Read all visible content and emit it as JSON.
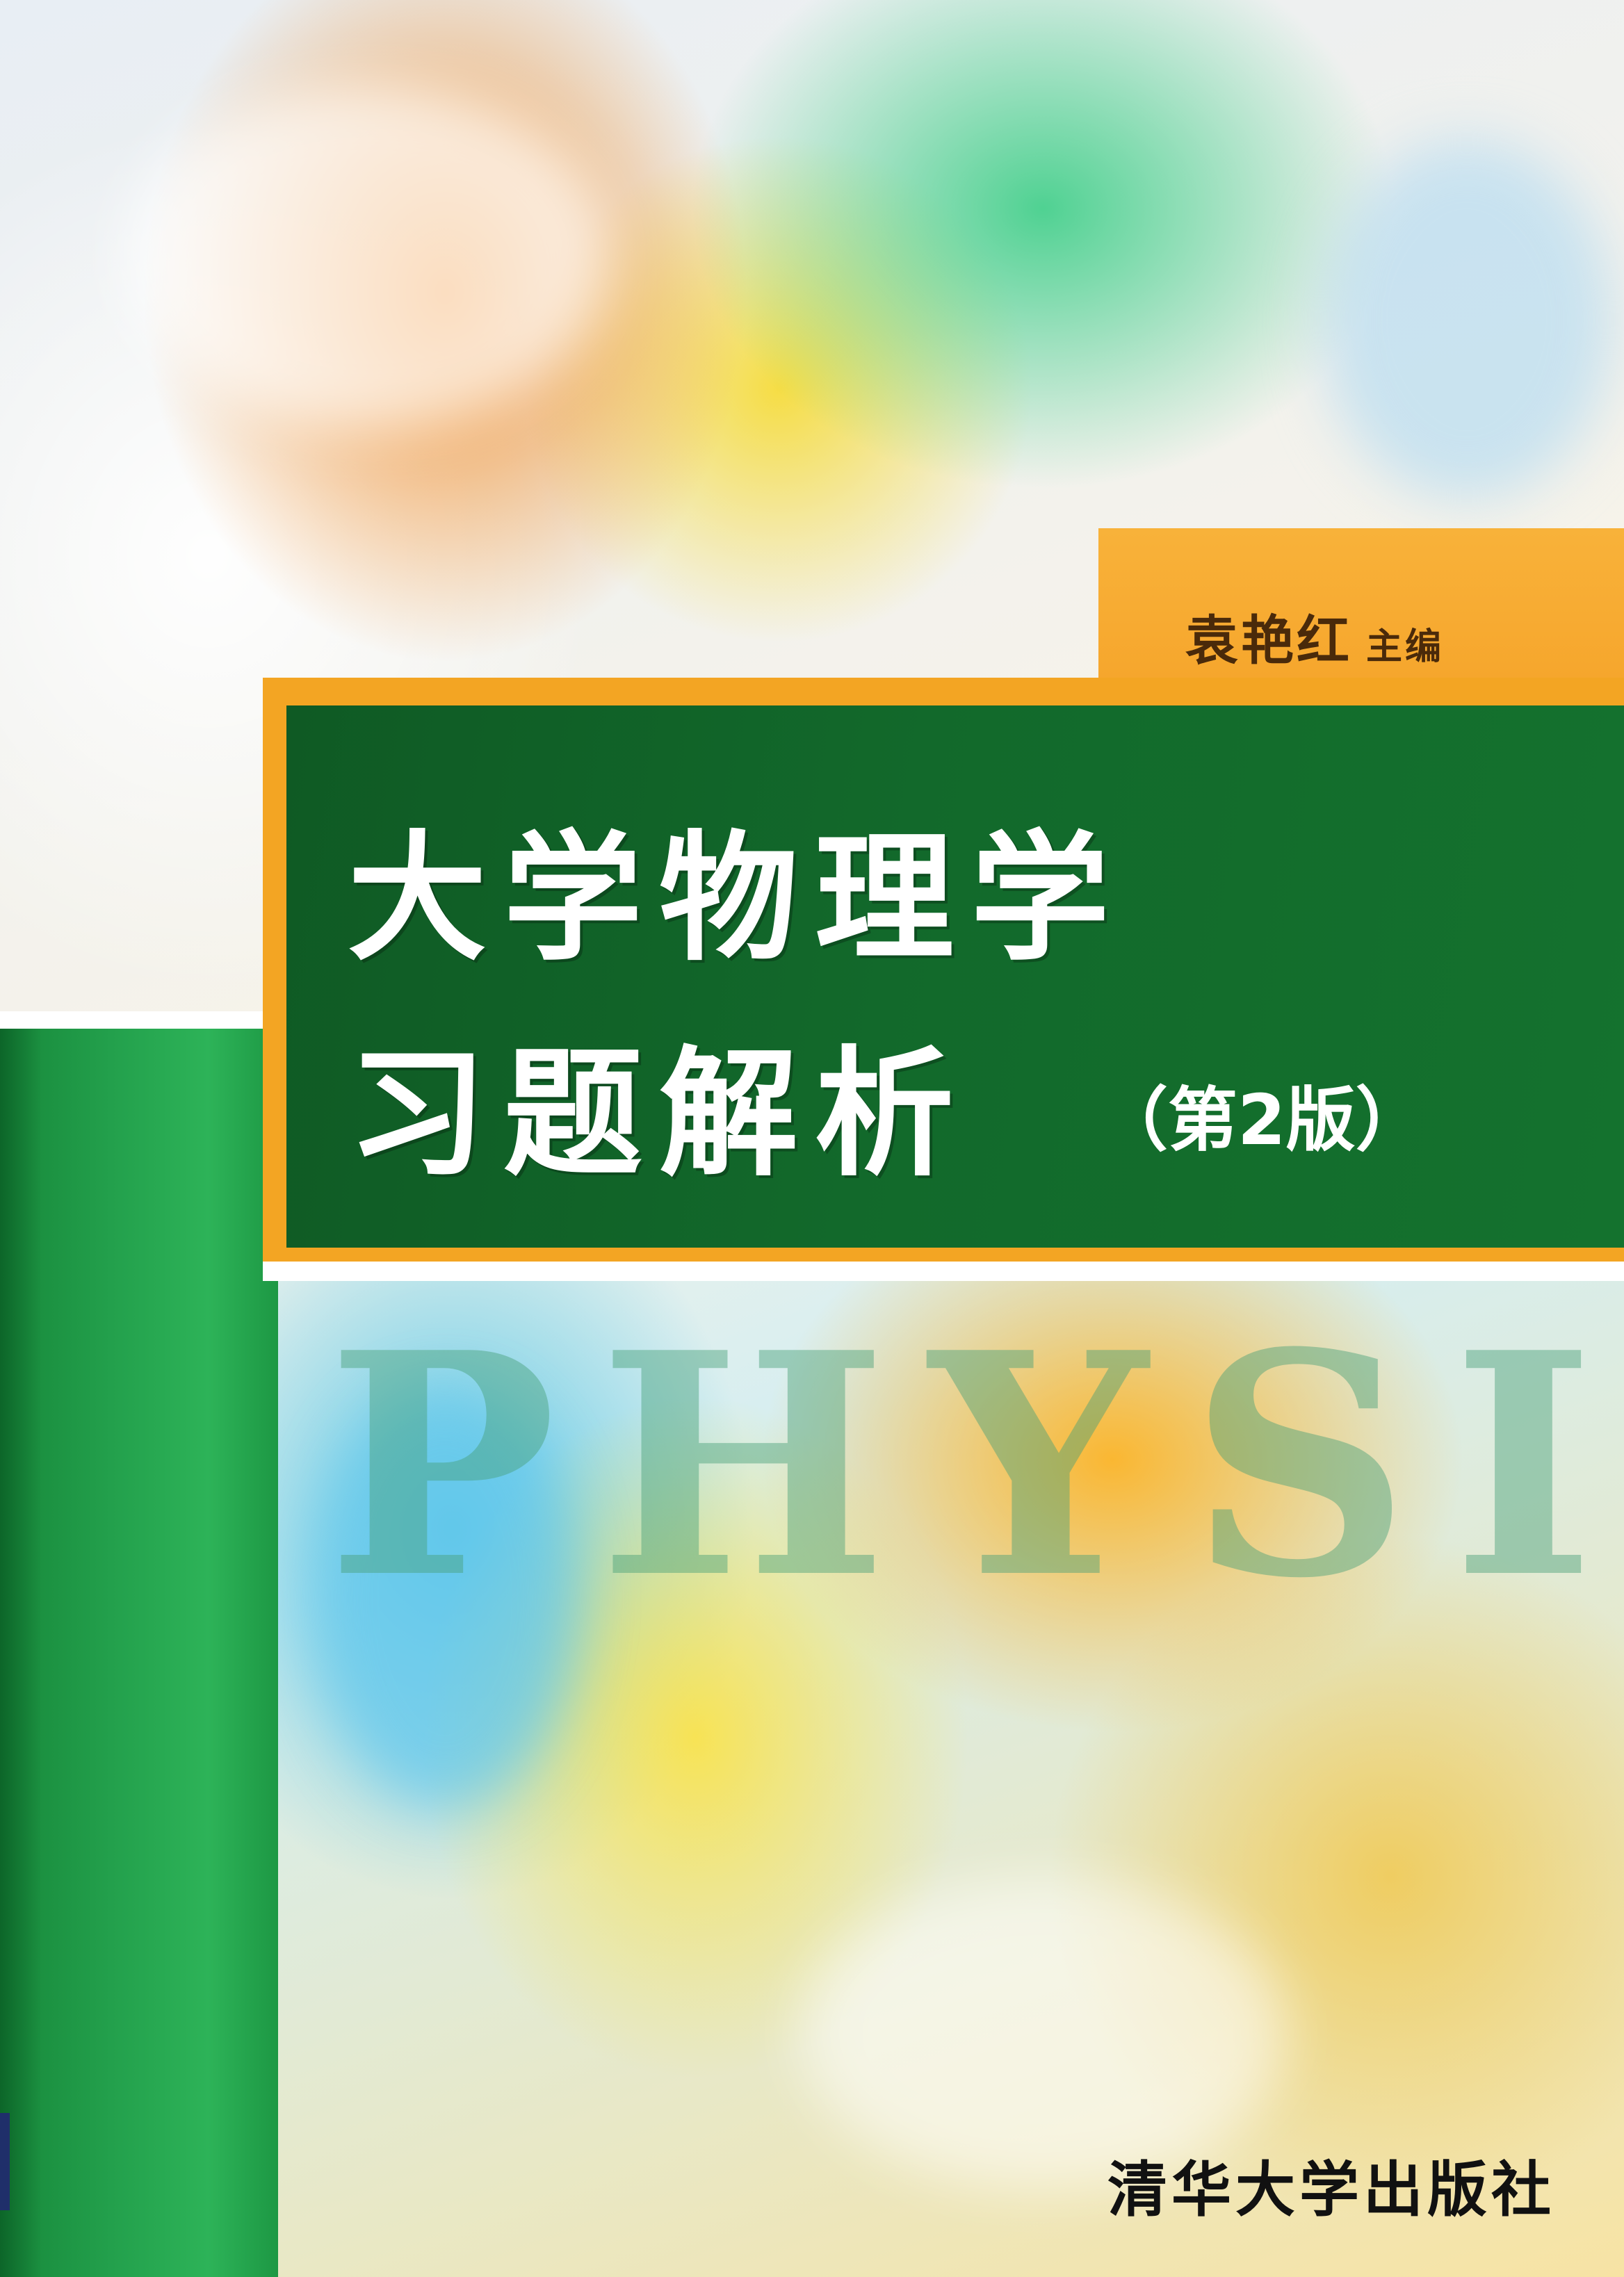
{
  "cover": {
    "author": "袁艳红",
    "author_role": "主编",
    "title_line_1": "大学物理学",
    "title_line_2": "习题解析",
    "edition": "（第2版）",
    "watermark": "PHYSICS",
    "publisher": "清华大学出版社"
  },
  "colors": {
    "title_block": "#12692b",
    "spine_green": "#23a04c",
    "orange": "#f3a523"
  }
}
